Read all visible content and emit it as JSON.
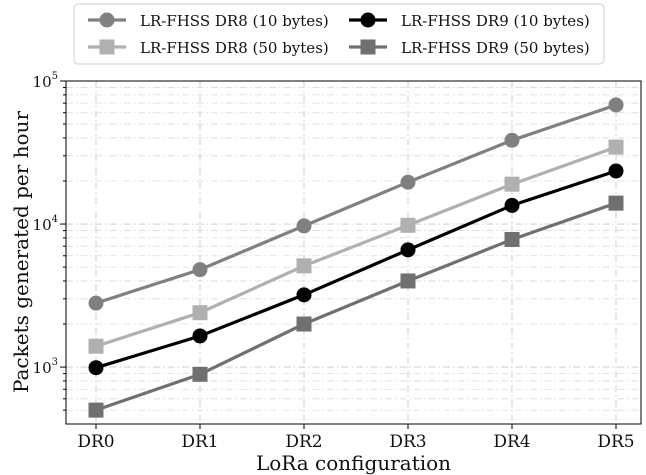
{
  "chart_data": {
    "type": "line",
    "xlabel": "LoRa configuration",
    "ylabel": "Packets generated per hour",
    "categories": [
      "DR0",
      "DR1",
      "DR2",
      "DR3",
      "DR4",
      "DR5"
    ],
    "yscale": "log",
    "ylim": [
      400,
      100000
    ],
    "y_ticks": [
      {
        "value": 1000,
        "base": "10",
        "exp": "3"
      },
      {
        "value": 10000,
        "base": "10",
        "exp": "4"
      },
      {
        "value": 100000,
        "base": "10",
        "exp": "5"
      }
    ],
    "grid": true,
    "legend": "top, two columns",
    "series": [
      {
        "name": "LR-FHSS DR8 (10 bytes)",
        "marker": "circle",
        "color": "#808080",
        "values": [
          2800,
          4800,
          9700,
          19600,
          38500,
          68000
        ]
      },
      {
        "name": "LR-FHSS DR8 (50 bytes)",
        "marker": "square",
        "color": "#b0b0b0",
        "values": [
          1400,
          2400,
          5100,
          9800,
          19000,
          34500
        ]
      },
      {
        "name": "LR-FHSS DR9 (10 bytes)",
        "marker": "circle",
        "color": "#000000",
        "values": [
          990,
          1650,
          3200,
          6600,
          13500,
          23500
        ]
      },
      {
        "name": "LR-FHSS DR9 (50 bytes)",
        "marker": "square",
        "color": "#707070",
        "values": [
          500,
          890,
          2000,
          4000,
          7800,
          14000
        ]
      }
    ]
  }
}
